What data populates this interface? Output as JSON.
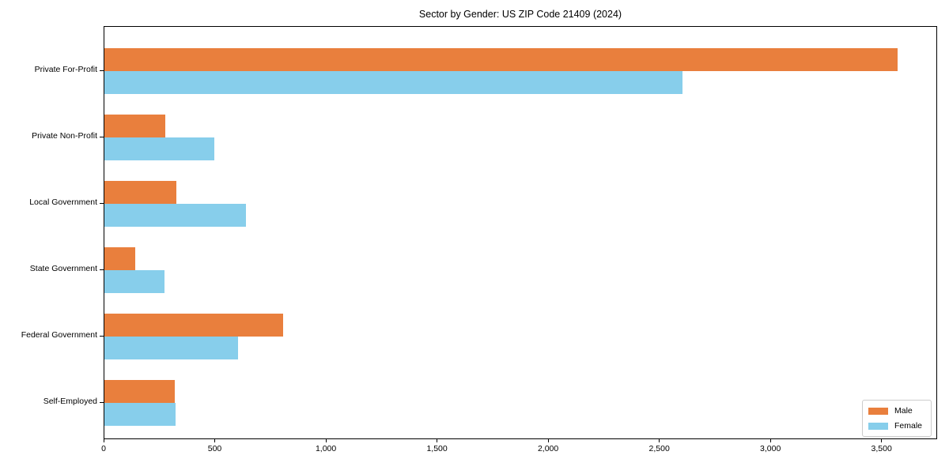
{
  "chart_data": {
    "type": "bar",
    "orientation": "horizontal",
    "title": "Sector by Gender: US ZIP Code 21409 (2024)",
    "categories": [
      "Private For-Profit",
      "Private Non-Profit",
      "Local Government",
      "State Government",
      "Federal Government",
      "Self-Employed"
    ],
    "series": [
      {
        "name": "Male",
        "color": "#e97f3d",
        "values": [
          3570,
          275,
          325,
          140,
          805,
          315
        ]
      },
      {
        "name": "Female",
        "color": "#87ceeb",
        "values": [
          2600,
          495,
          635,
          270,
          600,
          320
        ]
      }
    ],
    "xlim": [
      0,
      3750
    ],
    "x_ticks": [
      0,
      500,
      1000,
      1500,
      2000,
      2500,
      3000,
      3500
    ],
    "x_tick_labels": [
      "0",
      "500",
      "1,000",
      "1,500",
      "2,000",
      "2,500",
      "3,000",
      "3,500"
    ],
    "grid": false,
    "legend_position": "lower right",
    "axis_color": "#000000",
    "background_color": "#ffffff"
  }
}
